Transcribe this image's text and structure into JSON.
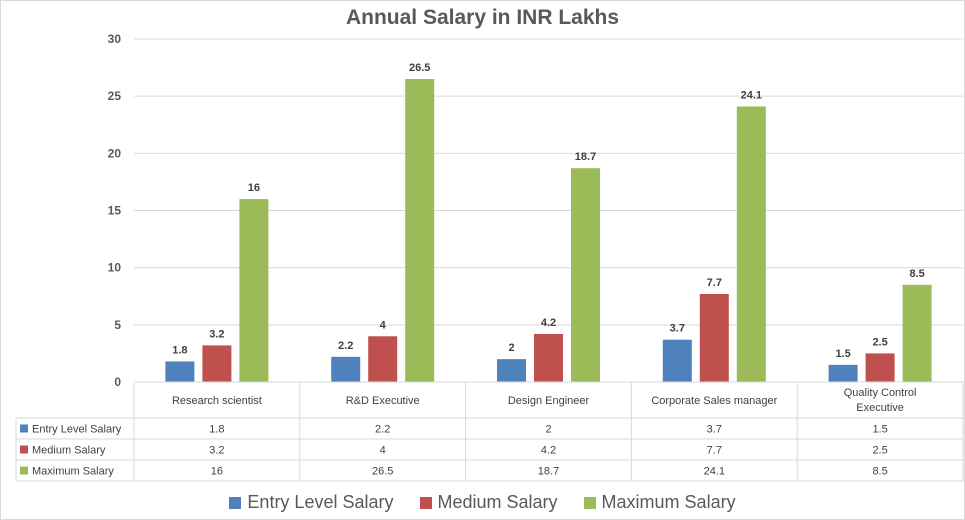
{
  "chart_data": {
    "type": "bar",
    "title": "Annual Salary in INR Lakhs",
    "xlabel": "",
    "ylabel": "",
    "ylim": [
      0,
      30
    ],
    "yticks": [
      0,
      5,
      10,
      15,
      20,
      25,
      30
    ],
    "grid": true,
    "legend_position": "bottom",
    "categories": [
      "Research scientist",
      "R&D Executive",
      "Design Engineer",
      "Corporate Sales manager",
      "Quality Control Executive"
    ],
    "series": [
      {
        "name": "Entry Level Salary",
        "color": "#4f81bd",
        "values": [
          1.8,
          2.2,
          2,
          3.7,
          1.5
        ]
      },
      {
        "name": "Medium Salary",
        "color": "#c0504d",
        "values": [
          3.2,
          4,
          4.2,
          7.7,
          2.5
        ]
      },
      {
        "name": "Maximum Salary",
        "color": "#9bbb59",
        "values": [
          16,
          26.5,
          18.7,
          24.1,
          8.5
        ]
      }
    ],
    "data_table": true
  }
}
